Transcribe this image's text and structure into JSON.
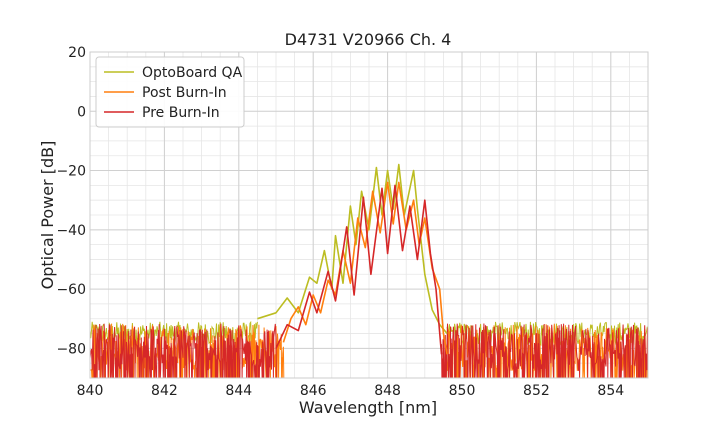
{
  "chart_data": {
    "type": "line",
    "title": "D4731 V20966 Ch. 4",
    "xlabel": "Wavelength [nm]",
    "ylabel": "Optical Power [dB]",
    "xlim": [
      840,
      855
    ],
    "ylim": [
      -90,
      20
    ],
    "x_ticks": [
      840,
      842,
      844,
      846,
      848,
      850,
      852,
      854
    ],
    "y_ticks": [
      20,
      0,
      -20,
      -40,
      -60,
      -80
    ],
    "grid": true,
    "legend_position": "top-left",
    "noise_floor": {
      "OptoBoard QA": -75,
      "Post Burn-In": -82,
      "Pre Burn-In": -82
    },
    "series": [
      {
        "name": "OptoBoard QA",
        "color": "#bcbd22",
        "points": [
          [
            844.5,
            -70
          ],
          [
            845.0,
            -68
          ],
          [
            845.3,
            -63
          ],
          [
            845.6,
            -68
          ],
          [
            845.9,
            -56
          ],
          [
            846.1,
            -58
          ],
          [
            846.3,
            -47
          ],
          [
            846.5,
            -60
          ],
          [
            846.6,
            -42
          ],
          [
            846.8,
            -58
          ],
          [
            847.0,
            -32
          ],
          [
            847.15,
            -45
          ],
          [
            847.3,
            -27
          ],
          [
            847.5,
            -40
          ],
          [
            847.7,
            -19
          ],
          [
            847.85,
            -35
          ],
          [
            848.0,
            -20
          ],
          [
            848.15,
            -33
          ],
          [
            848.3,
            -18
          ],
          [
            848.45,
            -35
          ],
          [
            848.7,
            -20
          ],
          [
            848.8,
            -33
          ],
          [
            849.0,
            -55
          ],
          [
            849.2,
            -67
          ],
          [
            849.4,
            -72
          ],
          [
            849.6,
            -75
          ]
        ]
      },
      {
        "name": "Post Burn-In",
        "color": "#ff7f0e",
        "points": [
          [
            845.2,
            -78
          ],
          [
            845.4,
            -70
          ],
          [
            845.6,
            -66
          ],
          [
            845.8,
            -72
          ],
          [
            846.0,
            -62
          ],
          [
            846.2,
            -68
          ],
          [
            846.4,
            -57
          ],
          [
            846.6,
            -62
          ],
          [
            846.8,
            -47
          ],
          [
            847.0,
            -58
          ],
          [
            847.2,
            -36
          ],
          [
            847.4,
            -46
          ],
          [
            847.6,
            -27
          ],
          [
            847.8,
            -41
          ],
          [
            848.0,
            -24
          ],
          [
            848.15,
            -38
          ],
          [
            848.3,
            -24
          ],
          [
            848.5,
            -40
          ],
          [
            848.7,
            -30
          ],
          [
            848.85,
            -45
          ],
          [
            849.0,
            -36
          ],
          [
            849.2,
            -53
          ],
          [
            849.4,
            -60
          ],
          [
            849.5,
            -75
          ],
          [
            849.6,
            -82
          ]
        ]
      },
      {
        "name": "Pre Burn-In",
        "color": "#d62728",
        "points": [
          [
            845.0,
            -80
          ],
          [
            845.3,
            -72
          ],
          [
            845.6,
            -74
          ],
          [
            845.9,
            -61
          ],
          [
            846.1,
            -68
          ],
          [
            846.4,
            -54
          ],
          [
            846.6,
            -64
          ],
          [
            846.9,
            -39
          ],
          [
            847.1,
            -62
          ],
          [
            847.35,
            -29
          ],
          [
            847.55,
            -55
          ],
          [
            847.85,
            -26
          ],
          [
            848.0,
            -48
          ],
          [
            848.2,
            -25
          ],
          [
            848.4,
            -47
          ],
          [
            848.6,
            -32
          ],
          [
            848.8,
            -50
          ],
          [
            849.0,
            -30
          ],
          [
            849.15,
            -48
          ],
          [
            849.3,
            -60
          ],
          [
            849.45,
            -82
          ]
        ]
      }
    ]
  }
}
